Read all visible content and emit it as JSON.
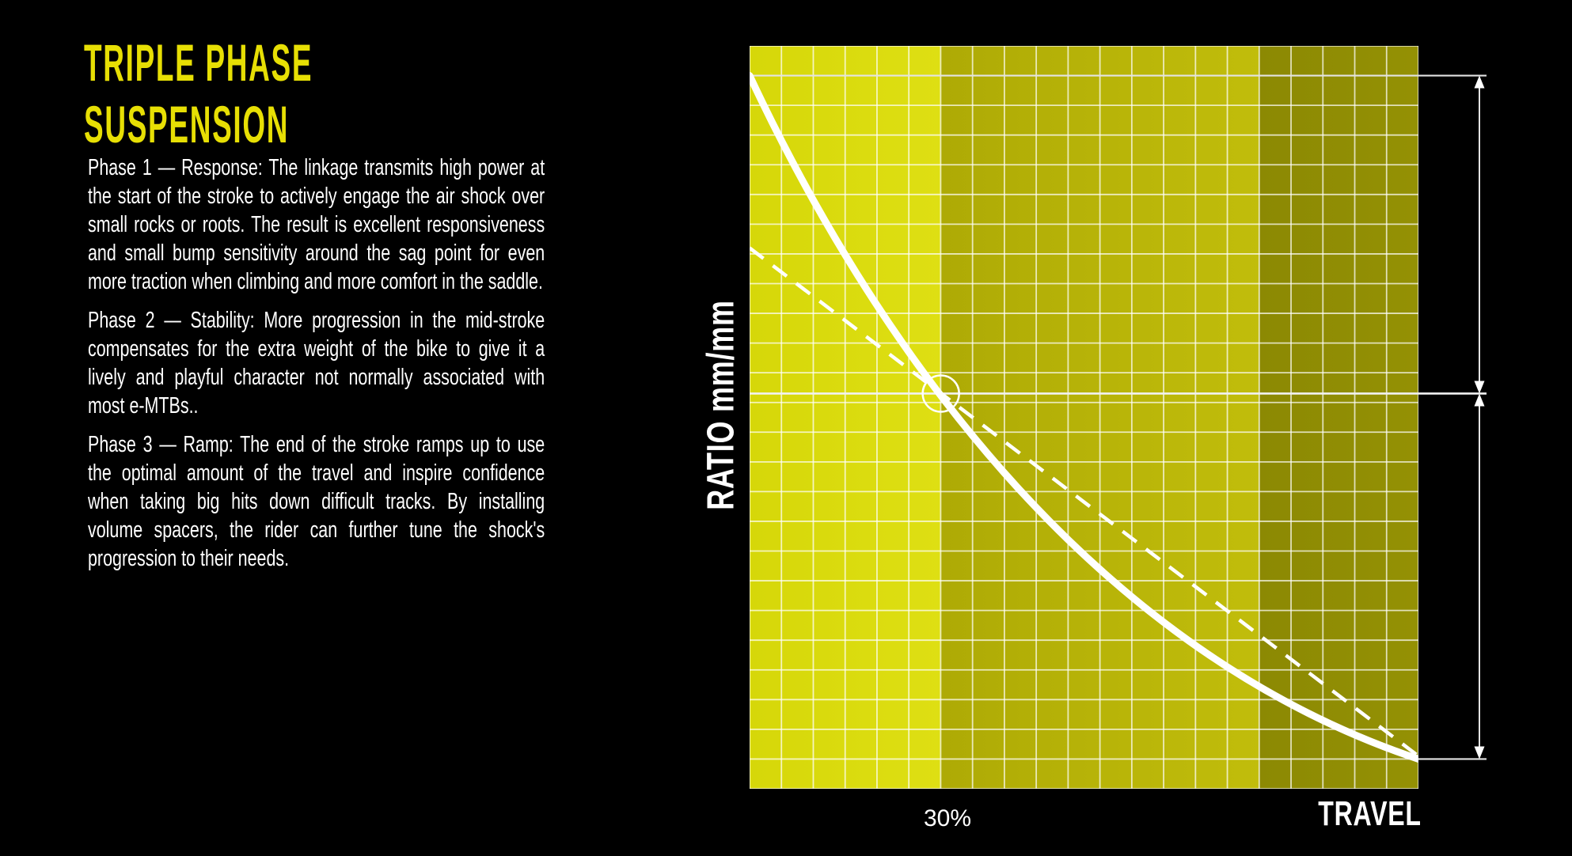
{
  "page": {
    "background": "#000000"
  },
  "left_panel": {
    "title_lines": [
      "TRIPLE PHASE",
      "SUSPENSION"
    ],
    "title_color": "#e7df04",
    "paragraphs": [
      "Phase 1 — Response: The linkage transmits high power at the start of the stroke to actively engage the air shock over small rocks or roots. The result is excellent responsiveness and small bump sensitivity around the sag point for even more traction when climbing and more comfort in the saddle.",
      "Phase 2 — Stability: More progression in the mid-stroke compensates for the extra weight of the bike to give it a lively and playful character not normally associated with most e-MTBs..",
      "Phase 3 — Ramp: The end of the stroke ramps up to use the optimal amount of the travel and inspire confidence when taking big hits down difficult tracks. By installing volume spacers, the rider can further tune the shock's progression to their needs."
    ]
  },
  "chart_data": {
    "type": "line",
    "title": "",
    "xlabel": "TRAVEL",
    "ylabel": "RATIO mm/mm",
    "x_unit": "percent of travel",
    "xlim": [
      0,
      100
    ],
    "grid": {
      "on": true,
      "columns": 21,
      "rows": 25,
      "color": "rgba(255,255,255,0.72)"
    },
    "x_ticks": [
      {
        "value": 30,
        "label": "30%"
      }
    ],
    "bands": [
      {
        "name": "phase-1-response",
        "x_start_pct": 0,
        "x_end_pct": 28.6,
        "color_left": "#d6d709",
        "color_right": "#dedf13"
      },
      {
        "name": "phase-2-stability",
        "x_start_pct": 28.6,
        "x_end_pct": 76.2,
        "color_left": "#aeaa05",
        "color_right": "#c1bd0b"
      },
      {
        "name": "phase-3-ramp",
        "x_start_pct": 76.2,
        "x_end_pct": 100,
        "color_left": "#8c8903",
        "color_right": "#949104"
      }
    ],
    "series": [
      {
        "name": "leverage-ratio-curve",
        "style": "solid",
        "stroke_width": 9,
        "color": "#ffffff",
        "bezier_pct": {
          "p0": [
            0,
            96.0
          ],
          "c1": [
            17.8,
            61.7
          ],
          "c2": [
            49.7,
            19.1
          ],
          "p3": [
            100,
            4.0
          ]
        },
        "points_pct": [
          [
            0,
            96.0
          ],
          [
            12.4,
            74.7
          ],
          [
            28.6,
            53.2
          ],
          [
            48.2,
            33.0
          ],
          [
            72.0,
            16.1
          ],
          [
            100,
            4.0
          ]
        ]
      },
      {
        "name": "linear-reference-line",
        "style": "dashed",
        "stroke_width": 4.5,
        "color": "#ffffff",
        "points_pct": [
          [
            0,
            72.8
          ],
          [
            100,
            4.4
          ]
        ]
      }
    ],
    "sag_marker": {
      "x_pct": 28.6,
      "y_pct": 53.2,
      "radius_px": 23,
      "label": "30%"
    },
    "reference_lines_y_pct": [
      96.0,
      53.2,
      4.0
    ],
    "dimension_arrows": [
      {
        "from_y_pct": 96.0,
        "to_y_pct": 53.2
      },
      {
        "from_y_pct": 53.2,
        "to_y_pct": 4.0
      }
    ],
    "legend": {
      "visible": false
    }
  }
}
